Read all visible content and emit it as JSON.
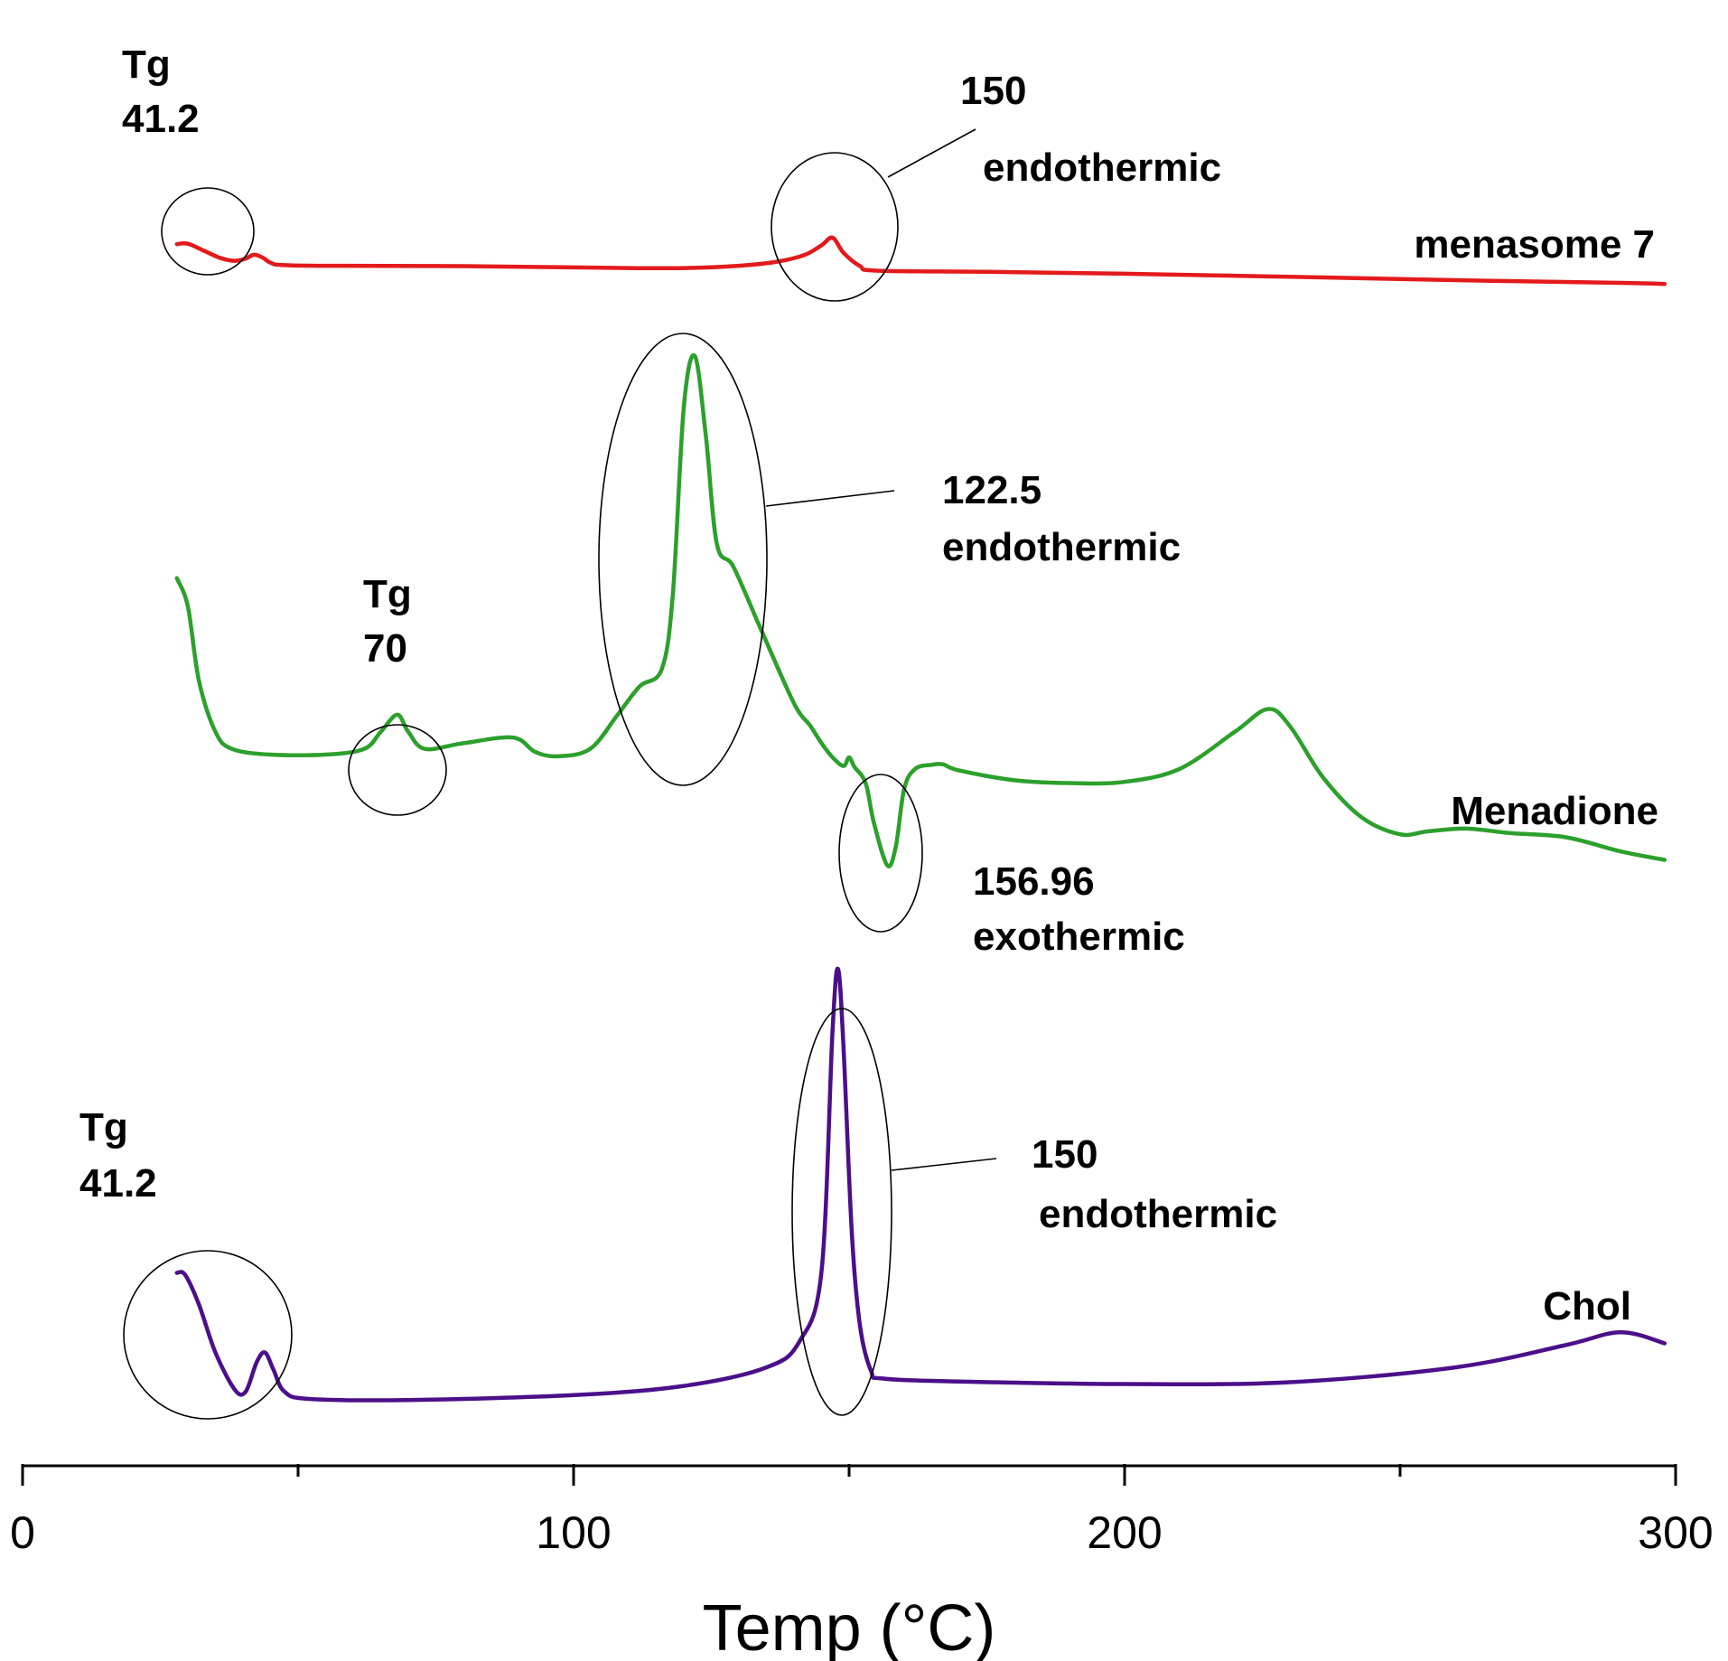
{
  "chart_data": {
    "type": "line",
    "title": "",
    "xlabel": "Temp (°C)",
    "ylabel": "",
    "xlim": [
      0,
      300
    ],
    "xticks": [
      {
        "value": 0,
        "label": "0"
      },
      {
        "value": 100,
        "label": "100"
      },
      {
        "value": 200,
        "label": "200"
      },
      {
        "value": 300,
        "label": "300"
      }
    ],
    "minor_ticks": [
      50,
      150,
      250
    ],
    "grid": false,
    "series": [
      {
        "name": "menasome 7",
        "color": "#e31a1c",
        "points": [
          [
            28,
            0.83
          ],
          [
            30,
            0.84
          ],
          [
            33,
            0.65
          ],
          [
            36,
            0.46
          ],
          [
            38.5,
            0.39
          ],
          [
            40.5,
            0.45
          ],
          [
            42,
            0.55
          ],
          [
            43.5,
            0.48
          ],
          [
            45,
            0.34
          ],
          [
            47,
            0.28
          ],
          [
            55,
            0.26
          ],
          [
            80,
            0.25
          ],
          [
            110,
            0.2
          ],
          [
            120,
            0.2
          ],
          [
            130,
            0.26
          ],
          [
            137,
            0.37
          ],
          [
            142,
            0.55
          ],
          [
            145,
            0.8
          ],
          [
            147,
            1.0
          ],
          [
            149,
            0.6
          ],
          [
            152,
            0.25
          ],
          [
            155,
            0.13
          ],
          [
            175,
            0.1
          ],
          [
            200,
            0.05
          ],
          [
            230,
            -0.03
          ],
          [
            260,
            -0.12
          ],
          [
            290,
            -0.19
          ],
          [
            298,
            -0.22
          ]
        ]
      },
      {
        "name": "Menadione",
        "color": "#2ca02c",
        "points": [
          [
            28,
            4.1
          ],
          [
            30,
            3.6
          ],
          [
            32,
            2.3
          ],
          [
            35,
            1.4
          ],
          [
            38,
            1.1
          ],
          [
            45,
            1.0
          ],
          [
            55,
            1.0
          ],
          [
            62,
            1.1
          ],
          [
            65,
            1.4
          ],
          [
            68,
            1.7
          ],
          [
            70,
            1.4
          ],
          [
            73,
            1.1
          ],
          [
            80,
            1.2
          ],
          [
            89,
            1.3
          ],
          [
            93,
            1.05
          ],
          [
            97,
            0.97
          ],
          [
            103,
            1.1
          ],
          [
            108,
            1.7
          ],
          [
            112,
            2.2
          ],
          [
            116,
            2.5
          ],
          [
            118,
            3.8
          ],
          [
            120,
            7.1
          ],
          [
            122,
            8.0
          ],
          [
            124,
            6.6
          ],
          [
            126,
            4.7
          ],
          [
            129,
            4.3
          ],
          [
            134,
            3.2
          ],
          [
            140,
            1.9
          ],
          [
            143,
            1.5
          ],
          [
            145,
            1.2
          ],
          [
            147,
            0.95
          ],
          [
            149,
            0.8
          ],
          [
            150,
            0.95
          ],
          [
            151,
            0.78
          ],
          [
            153,
            0.5
          ],
          [
            154.5,
            -0.2
          ],
          [
            156.96,
            -0.95
          ],
          [
            158.5,
            -0.6
          ],
          [
            160,
            0.4
          ],
          [
            162,
            0.75
          ],
          [
            165,
            0.82
          ],
          [
            167,
            0.83
          ],
          [
            170,
            0.72
          ],
          [
            180,
            0.55
          ],
          [
            190,
            0.5
          ],
          [
            200,
            0.52
          ],
          [
            210,
            0.75
          ],
          [
            220,
            1.4
          ],
          [
            226,
            1.8
          ],
          [
            230,
            1.5
          ],
          [
            236,
            0.6
          ],
          [
            243,
            -0.1
          ],
          [
            250,
            -0.4
          ],
          [
            255,
            -0.35
          ],
          [
            262,
            -0.3
          ],
          [
            270,
            -0.38
          ],
          [
            280,
            -0.45
          ],
          [
            290,
            -0.7
          ],
          [
            298,
            -0.85
          ]
        ]
      },
      {
        "name": "Chol",
        "color": "#4b0f8a",
        "points": [
          [
            28,
            3.45
          ],
          [
            29.5,
            3.4
          ],
          [
            32,
            2.6
          ],
          [
            35,
            1.3
          ],
          [
            38.5,
            0.3
          ],
          [
            40.5,
            0.25
          ],
          [
            42.5,
            1.05
          ],
          [
            44,
            1.3
          ],
          [
            45.5,
            0.85
          ],
          [
            47.5,
            0.25
          ],
          [
            52,
            0.05
          ],
          [
            70,
            0.02
          ],
          [
            100,
            0.15
          ],
          [
            120,
            0.4
          ],
          [
            135,
            0.9
          ],
          [
            141,
            1.6
          ],
          [
            145,
            3.5
          ],
          [
            147,
            10
          ],
          [
            148,
            11.65
          ],
          [
            149,
            9.5
          ],
          [
            150.5,
            4.5
          ],
          [
            152,
            2.0
          ],
          [
            154,
            0.8
          ],
          [
            156,
            0.6
          ],
          [
            170,
            0.52
          ],
          [
            200,
            0.45
          ],
          [
            230,
            0.5
          ],
          [
            260,
            0.9
          ],
          [
            280,
            1.5
          ],
          [
            290,
            1.85
          ],
          [
            298,
            1.55
          ]
        ]
      }
    ],
    "annotations": [
      {
        "label": "Tg",
        "value": "41.2",
        "series": "menasome 7"
      },
      {
        "label": "150",
        "value": "endothermic",
        "series": "menasome 7"
      },
      {
        "label": "Tg",
        "value": "70",
        "series": "Menadione"
      },
      {
        "label": "122.5",
        "value": "endothermic",
        "series": "Menadione"
      },
      {
        "label": "156.96",
        "value": "exothermic",
        "series": "Menadione"
      },
      {
        "label": "Tg",
        "value": "41.2",
        "series": "Chol"
      },
      {
        "label": "150",
        "value": "endothermic",
        "series": "Chol"
      }
    ]
  }
}
